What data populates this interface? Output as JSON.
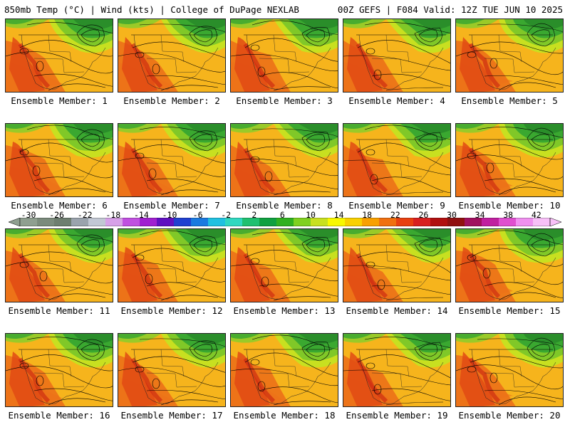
{
  "header": {
    "left": "850mb Temp (°C) | Wind (kts) | College of DuPage NEXLAB",
    "right": "00Z GEFS | F084 Valid: 12Z TUE JUN 10 2025"
  },
  "members": [
    "Ensemble Member: 1",
    "Ensemble Member: 2",
    "Ensemble Member: 3",
    "Ensemble Member: 4",
    "Ensemble Member: 5",
    "Ensemble Member: 6",
    "Ensemble Member: 7",
    "Ensemble Member: 8",
    "Ensemble Member: 9",
    "Ensemble Member: 10",
    "Ensemble Member: 11",
    "Ensemble Member: 12",
    "Ensemble Member: 13",
    "Ensemble Member: 14",
    "Ensemble Member: 15",
    "Ensemble Member: 16",
    "Ensemble Member: 17",
    "Ensemble Member: 18",
    "Ensemble Member: 19",
    "Ensemble Member: 20"
  ],
  "colorbar": {
    "tick_labels": [
      "-30",
      "-26",
      "-22",
      "-18",
      "-14",
      "-10",
      "-6",
      "-2",
      "2",
      "6",
      "10",
      "14",
      "18",
      "22",
      "26",
      "30",
      "34",
      "38",
      "42"
    ],
    "colors": [
      "#8f9f90",
      "#7b8b7c",
      "#6e7e70",
      "#9aa3ad",
      "#c2c8d4",
      "#d7a0e8",
      "#c050e0",
      "#a020d0",
      "#6010c0",
      "#2040d0",
      "#1a7ae0",
      "#20c0e0",
      "#30d8c0",
      "#20c070",
      "#10a040",
      "#30b020",
      "#80d020",
      "#c8e020",
      "#f8f800",
      "#f8d000",
      "#f8a000",
      "#f07010",
      "#e84010",
      "#d82020",
      "#b01010",
      "#901010",
      "#a01060",
      "#c020a0",
      "#e050d0",
      "#f090f0",
      "#f8c0f8"
    ]
  }
}
